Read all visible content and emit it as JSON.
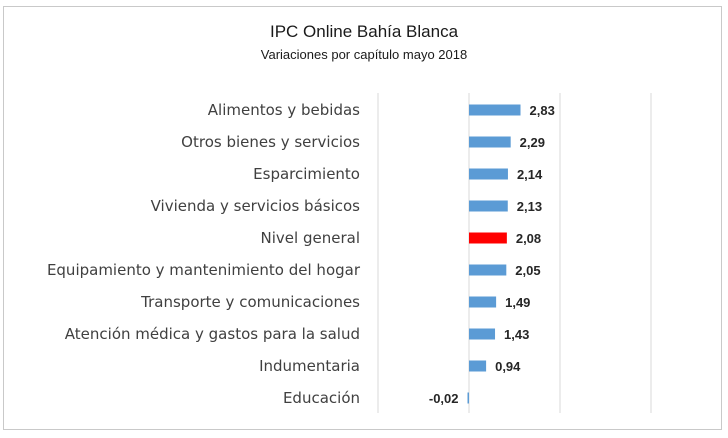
{
  "chart_data": {
    "type": "bar",
    "orientation": "horizontal",
    "title": "IPC Online Bahía Blanca",
    "subtitle": "Variaciones por capítulo mayo 2018",
    "categories": [
      "Alimentos y bebidas",
      "Otros bienes y servicios",
      "Esparcimiento",
      "Vivienda y servicios básicos",
      "Nivel general",
      "Equipamiento y mantenimiento del hogar",
      "Transporte y comunicaciones",
      "Atención médica y gastos para la salud",
      "Indumentaria",
      "Educación"
    ],
    "values": [
      2.83,
      2.29,
      2.14,
      2.13,
      2.08,
      2.05,
      1.49,
      1.43,
      0.94,
      -0.02
    ],
    "value_labels": [
      "2,83",
      "2,29",
      "2,14",
      "2,13",
      "2,08",
      "2,05",
      "1,49",
      "1,43",
      "0,94",
      "-0,02"
    ],
    "xlim": [
      -5,
      15
    ],
    "grid": true,
    "bar_color": "#5b9bd5",
    "highlight_color": "#ff0000",
    "highlight_category": "Nivel general"
  }
}
